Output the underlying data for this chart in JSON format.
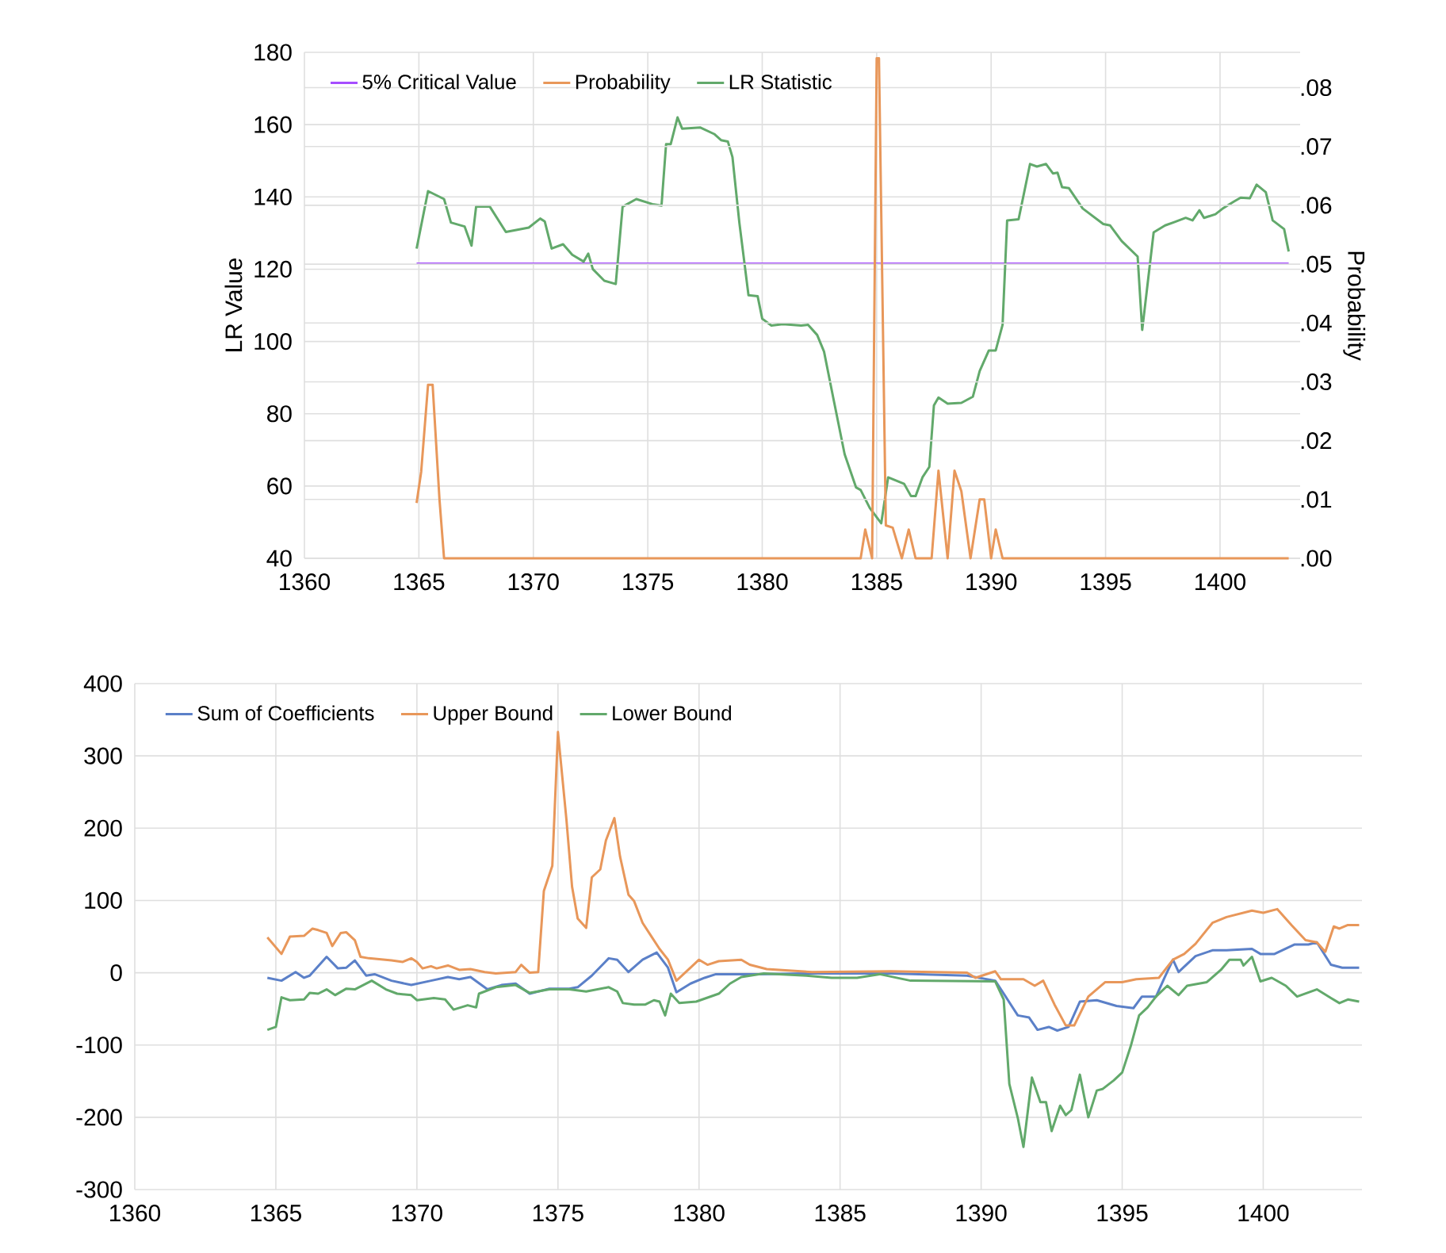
{
  "chart_data": [
    {
      "type": "line",
      "xlim": [
        1360,
        1403.5
      ],
      "xticks": [
        1360,
        1365,
        1370,
        1375,
        1380,
        1385,
        1390,
        1395,
        1400
      ],
      "ylim": [
        40,
        180
      ],
      "yticks": [
        40,
        60,
        80,
        100,
        120,
        140,
        160,
        180
      ],
      "y2lim": [
        0,
        0.086
      ],
      "y2ticks": [
        {
          "value": 0,
          "label": ".00"
        },
        {
          "value": 0.01,
          "label": ".01"
        },
        {
          "value": 0.02,
          "label": ".02"
        },
        {
          "value": 0.03,
          "label": ".03"
        },
        {
          "value": 0.04,
          "label": ".04"
        },
        {
          "value": 0.05,
          "label": ".05"
        },
        {
          "value": 0.06,
          "label": ".06"
        },
        {
          "value": 0.07,
          "label": ".07"
        },
        {
          "value": 0.08,
          "label": ".08"
        }
      ],
      "ylabel": "LR Value",
      "y2label": "Probability",
      "grid": true,
      "legend": "top left",
      "series": [
        {
          "name": "5% Critical Value",
          "color": "#a64dff",
          "x": [
            1364.9,
            1403.0
          ],
          "values": [
            121.5,
            121.5
          ]
        },
        {
          "name": "Probability",
          "color": "#e8975a",
          "axis": "y2",
          "x": [
            1364.9,
            1365.1,
            1365.4,
            1365.6,
            1365.9,
            1366.1,
            1384.3,
            1384.5,
            1384.8,
            1385.0,
            1385.1,
            1385.4,
            1385.7,
            1386.1,
            1386.4,
            1386.7,
            1387.4,
            1387.7,
            1388.1,
            1388.4,
            1388.7,
            1389.1,
            1389.5,
            1389.7,
            1390.0,
            1390.2,
            1390.5,
            1403.0
          ],
          "values": [
            0.0094,
            0.0147,
            0.0295,
            0.0295,
            0.01,
            0,
            0,
            0.0049,
            0,
            0.085,
            0.085,
            0.0056,
            0.0052,
            0,
            0.0049,
            0,
            0,
            0.0149,
            0,
            0.0149,
            0.0114,
            0,
            0.01,
            0.01,
            0,
            0.0049,
            0,
            0
          ]
        },
        {
          "name": "LR Statistic",
          "color": "#62a96b",
          "x": [
            1364.9,
            1365.4,
            1366.1,
            1366.4,
            1367.0,
            1367.3,
            1367.5,
            1368.1,
            1368.8,
            1369.8,
            1370.3,
            1370.5,
            1370.8,
            1371.3,
            1371.7,
            1372.2,
            1372.4,
            1372.6,
            1373.1,
            1373.6,
            1373.9,
            1374.5,
            1375.2,
            1375.6,
            1375.8,
            1376.0,
            1376.3,
            1376.5,
            1377.3,
            1377.9,
            1378.2,
            1378.5,
            1378.7,
            1379.0,
            1379.4,
            1379.8,
            1380.0,
            1380.4,
            1380.9,
            1381.7,
            1382.0,
            1382.4,
            1382.7,
            1383.1,
            1383.6,
            1384.1,
            1384.3,
            1384.7,
            1385.2,
            1385.5,
            1386.2,
            1386.5,
            1386.7,
            1387.0,
            1387.3,
            1387.5,
            1387.7,
            1388.1,
            1388.7,
            1389.2,
            1389.5,
            1389.9,
            1390.2,
            1390.5,
            1390.7,
            1391.2,
            1391.7,
            1392.0,
            1392.4,
            1392.7,
            1392.9,
            1393.1,
            1393.4,
            1394.0,
            1394.9,
            1395.2,
            1395.7,
            1396.4,
            1396.6,
            1397.1,
            1397.6,
            1398.0,
            1398.5,
            1398.8,
            1399.1,
            1399.3,
            1399.8,
            1400.1,
            1400.6,
            1400.9,
            1401.3,
            1401.6,
            1402.0,
            1402.3,
            1402.8,
            1403.0
          ],
          "values": [
            125.7,
            141.6,
            139.4,
            132.9,
            131.8,
            126.5,
            137.3,
            137.3,
            130.3,
            131.5,
            134.0,
            133.2,
            125.7,
            126.9,
            124.0,
            122.1,
            124.3,
            120.0,
            116.8,
            115.9,
            137.3,
            139.4,
            138.0,
            137.6,
            154.6,
            154.6,
            162.0,
            158.9,
            159.2,
            157.4,
            155.7,
            155.3,
            151.0,
            132.9,
            112.8,
            112.5,
            106.3,
            104.4,
            104.8,
            104.4,
            104.6,
            101.8,
            97.2,
            84.5,
            68.8,
            59.6,
            58.9,
            53.9,
            49.7,
            62.4,
            60.6,
            57.2,
            57.2,
            62.4,
            65.3,
            82.3,
            84.5,
            82.8,
            83.0,
            84.7,
            91.8,
            97.5,
            97.5,
            104.6,
            133.5,
            133.8,
            149.1,
            148.4,
            149.1,
            146.5,
            146.7,
            142.7,
            142.4,
            136.8,
            132.5,
            132.1,
            127.8,
            123.5,
            103.2,
            130.2,
            132.1,
            133.0,
            134.2,
            133.5,
            136.3,
            134.2,
            135.2,
            136.7,
            138.7,
            139.8,
            139.6,
            143.4,
            141.3,
            133.5,
            131.1,
            124.9
          ]
        }
      ]
    },
    {
      "type": "line",
      "xlim": [
        1360,
        1403.5
      ],
      "xticks": [
        1360,
        1365,
        1370,
        1375,
        1380,
        1385,
        1390,
        1395,
        1400
      ],
      "ylim": [
        -300,
        400
      ],
      "yticks": [
        -300,
        -200,
        -100,
        0,
        100,
        200,
        300,
        400
      ],
      "grid": true,
      "legend": "top left",
      "series": [
        {
          "name": "Sum of Coefficients",
          "color": "#5b80c8",
          "x": [
            1364.7,
            1365.2,
            1365.7,
            1366.0,
            1366.2,
            1366.8,
            1367.2,
            1367.5,
            1367.8,
            1368.2,
            1368.5,
            1369.1,
            1369.8,
            1370.5,
            1371.1,
            1371.5,
            1371.9,
            1372.5,
            1373.0,
            1373.5,
            1374.0,
            1374.7,
            1375.4,
            1375.7,
            1376.2,
            1376.8,
            1377.1,
            1377.5,
            1378.0,
            1378.5,
            1378.9,
            1379.2,
            1379.7,
            1380.2,
            1380.6,
            1382.1,
            1384.0,
            1386.8,
            1389.5,
            1390.5,
            1390.9,
            1391.3,
            1391.7,
            1392.0,
            1392.4,
            1392.7,
            1393.1,
            1393.5,
            1394.1,
            1394.8,
            1395.4,
            1395.7,
            1396.2,
            1396.5,
            1396.8,
            1397.0,
            1397.6,
            1398.2,
            1398.7,
            1399.6,
            1399.9,
            1400.4,
            1401.1,
            1401.6,
            1401.9,
            1402.4,
            1402.8,
            1403.4
          ],
          "values": [
            -7,
            -11,
            1,
            -7,
            -4,
            22,
            6,
            7,
            17,
            -4,
            -2,
            -11,
            -17,
            -11,
            -6,
            -9,
            -6,
            -23,
            -17,
            -15,
            -29,
            -22,
            -22,
            -20,
            -4,
            20,
            18,
            1,
            18,
            28,
            7,
            -27,
            -15,
            -7,
            -2,
            -2,
            -1,
            -1,
            -4,
            -11,
            -35,
            -59,
            -62,
            -79,
            -75,
            -80,
            -75,
            -40,
            -38,
            -46,
            -49,
            -33,
            -33,
            -7,
            18,
            1,
            23,
            31,
            31,
            33,
            26,
            26,
            39,
            39,
            42,
            11,
            7,
            7
          ]
        },
        {
          "name": "Upper Bound",
          "color": "#e8975a",
          "x": [
            1364.7,
            1365.2,
            1365.5,
            1366.0,
            1366.3,
            1366.5,
            1366.8,
            1367.0,
            1367.3,
            1367.5,
            1367.8,
            1368.0,
            1368.3,
            1369.1,
            1369.5,
            1369.8,
            1370.0,
            1370.2,
            1370.5,
            1370.7,
            1371.1,
            1371.5,
            1371.9,
            1372.4,
            1372.8,
            1373.5,
            1373.7,
            1374.0,
            1374.3,
            1374.5,
            1374.8,
            1375.0,
            1375.3,
            1375.5,
            1375.7,
            1376.0,
            1376.2,
            1376.5,
            1376.7,
            1377.0,
            1377.2,
            1377.5,
            1377.7,
            1378.0,
            1378.3,
            1378.6,
            1378.9,
            1379.2,
            1379.7,
            1380.0,
            1380.3,
            1380.7,
            1381.5,
            1381.8,
            1382.4,
            1384.0,
            1386.8,
            1388.3,
            1389.5,
            1389.8,
            1390.5,
            1390.7,
            1391.5,
            1391.9,
            1392.2,
            1392.6,
            1393.0,
            1393.3,
            1393.8,
            1394.4,
            1395.0,
            1395.5,
            1396.3,
            1396.8,
            1397.2,
            1397.6,
            1398.2,
            1398.7,
            1399.6,
            1400.0,
            1400.5,
            1401.0,
            1401.5,
            1401.9,
            1402.2,
            1402.5,
            1402.7,
            1403.0,
            1403.4
          ],
          "values": [
            49,
            26,
            50,
            51,
            61,
            59,
            55,
            37,
            55,
            56,
            45,
            22,
            20,
            17,
            15,
            20,
            15,
            6,
            9,
            6,
            10,
            4,
            5,
            1,
            -1,
            1,
            11,
            0,
            1,
            113,
            148,
            333,
            212,
            119,
            75,
            62,
            132,
            143,
            183,
            214,
            161,
            108,
            99,
            69,
            51,
            33,
            18,
            -11,
            7,
            18,
            11,
            16,
            18,
            11,
            5,
            1,
            2,
            1,
            0,
            -7,
            2,
            -9,
            -9,
            -18,
            -11,
            -44,
            -73,
            -73,
            -33,
            -13,
            -13,
            -9,
            -7,
            18,
            26,
            40,
            69,
            77,
            86,
            83,
            88,
            66,
            45,
            42,
            29,
            64,
            61,
            66,
            66
          ]
        },
        {
          "name": "Lower Bound",
          "color": "#62a96b",
          "x": [
            1364.7,
            1365.0,
            1365.2,
            1365.5,
            1366.0,
            1366.2,
            1366.5,
            1366.8,
            1367.1,
            1367.5,
            1367.8,
            1368.4,
            1368.9,
            1369.3,
            1369.8,
            1370.0,
            1370.6,
            1371.0,
            1371.3,
            1371.8,
            1372.1,
            1372.2,
            1372.8,
            1373.5,
            1374.0,
            1374.7,
            1375.4,
            1376.0,
            1376.8,
            1377.1,
            1377.3,
            1377.7,
            1378.1,
            1378.4,
            1378.6,
            1378.8,
            1379.0,
            1379.3,
            1379.9,
            1380.7,
            1381.1,
            1381.5,
            1382.3,
            1383.8,
            1384.7,
            1385.6,
            1386.4,
            1387.5,
            1390.5,
            1390.8,
            1391.0,
            1391.3,
            1391.5,
            1391.8,
            1392.1,
            1392.3,
            1392.5,
            1392.8,
            1393.0,
            1393.2,
            1393.5,
            1393.8,
            1394.1,
            1394.3,
            1394.7,
            1395.0,
            1395.3,
            1395.6,
            1395.9,
            1396.2,
            1396.6,
            1397.0,
            1397.3,
            1398.0,
            1398.5,
            1398.8,
            1399.2,
            1399.3,
            1399.6,
            1399.9,
            1400.3,
            1400.8,
            1401.2,
            1401.9,
            1402.4,
            1402.7,
            1403.0,
            1403.4
          ],
          "values": [
            -79,
            -75,
            -34,
            -38,
            -37,
            -28,
            -29,
            -23,
            -31,
            -22,
            -23,
            -11,
            -23,
            -29,
            -31,
            -38,
            -35,
            -37,
            -51,
            -45,
            -48,
            -29,
            -20,
            -17,
            -28,
            -23,
            -23,
            -26,
            -20,
            -26,
            -42,
            -44,
            -44,
            -38,
            -40,
            -59,
            -29,
            -42,
            -40,
            -29,
            -15,
            -6,
            -1,
            -4,
            -7,
            -7,
            -2,
            -11,
            -12,
            -37,
            -154,
            -201,
            -241,
            -145,
            -179,
            -179,
            -219,
            -184,
            -197,
            -190,
            -141,
            -200,
            -163,
            -161,
            -149,
            -138,
            -102,
            -59,
            -48,
            -33,
            -18,
            -31,
            -18,
            -13,
            4,
            18,
            18,
            10,
            22,
            -12,
            -7,
            -18,
            -33,
            -23,
            -35,
            -42,
            -37,
            -40
          ]
        }
      ]
    }
  ]
}
